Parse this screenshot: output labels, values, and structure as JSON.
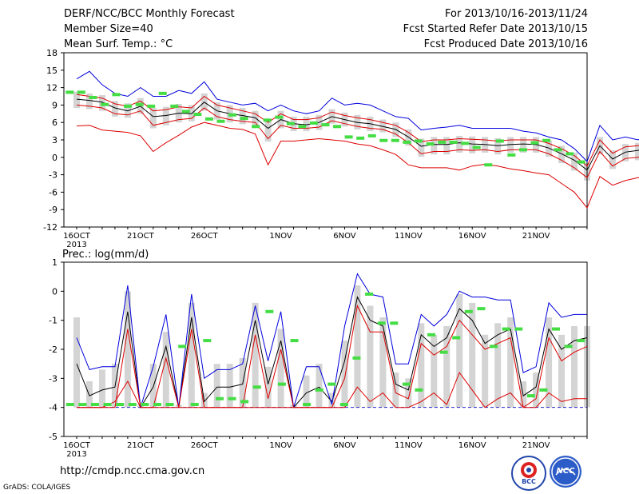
{
  "header": {
    "title": "DERF/NCC/BCC Monthly Forecast",
    "members": "Member Size=40",
    "variable": "Mean Surf. Temp.: °C",
    "period": "For 2013/10/16-2013/11/24",
    "started": "Fcst Started Refer Date 2013/10/15",
    "produced": "Fcst Produced Date 2013/10/16"
  },
  "footer": {
    "url": "http://cmdp.ncc.cma.gov.cn",
    "grads": "GrADS: COLA/IGES",
    "logo_left_text": "BCC",
    "logo_right_text": "NCC"
  },
  "colors": {
    "ensemble_box": "#d4d4d4",
    "mean": "#000000",
    "upper": "#0000dd",
    "lower": "#dd0000",
    "median": "#44dd44",
    "frame": "#000000"
  },
  "chart_data": [
    {
      "type": "line",
      "title": "Mean Surf. Temp.: °C",
      "xlabels": [
        "16OCT\n2013",
        "21OCT",
        "26OCT",
        "1NOV",
        "6NOV",
        "11NOV",
        "16NOV",
        "21NOV"
      ],
      "xlabel_days": [
        0,
        5,
        10,
        16,
        21,
        26,
        31,
        36
      ],
      "ylim": [
        -12,
        18
      ],
      "yticks": [
        -12,
        -9,
        -6,
        -3,
        0,
        3,
        6,
        9,
        12,
        15,
        18
      ],
      "days": 40,
      "series": [
        {
          "role": "mean",
          "values": [
            10,
            9.8,
            9.5,
            8.5,
            8,
            8.8,
            7,
            7.2,
            7.6,
            7.5,
            9.5,
            8,
            7.5,
            7.2,
            6.8,
            5,
            6.5,
            5.8,
            5.6,
            6,
            7,
            6.5,
            6,
            5.8,
            5.3,
            4.8,
            3.5,
            1.9,
            2.2,
            2.2,
            2.5,
            2.3,
            2.2,
            2.0,
            2.2,
            2.3,
            2.2,
            1.6,
            0.6,
            -0.5,
            -2.2,
            2.0,
            -0.3,
            0.9,
            1.2,
            2.0,
            0.5,
            0.3,
            -0.5,
            -1.8
          ]
        },
        {
          "role": "upper",
          "values": [
            13.5,
            14.8,
            12.5,
            11,
            10.5,
            12,
            10.5,
            10.5,
            11.5,
            11,
            13,
            10,
            9.5,
            9,
            9.3,
            8,
            9,
            8,
            7.5,
            8,
            10.2,
            9,
            9.3,
            9,
            8,
            7,
            6.7,
            4.7,
            5,
            5.2,
            5.5,
            5,
            5,
            5,
            5,
            4.5,
            4.2,
            3.5,
            3,
            1.5,
            -0.7,
            5.5,
            3,
            3.5,
            3,
            4.5,
            3.2,
            2.8,
            2.5,
            1.5
          ]
        },
        {
          "role": "lower",
          "values": [
            5.4,
            5.5,
            4.7,
            4.5,
            4.3,
            3.7,
            1,
            2.5,
            3.8,
            5.2,
            6,
            5.5,
            5,
            4.8,
            4,
            -1.3,
            2.8,
            2.8,
            3,
            3.2,
            3,
            2.8,
            2.3,
            2,
            1.3,
            0.5,
            -1.3,
            -1.8,
            -1.8,
            -1.8,
            -2.2,
            -1.5,
            -1.2,
            -1.5,
            -2,
            -2.3,
            -2.7,
            -3,
            -4.5,
            -6,
            -8.7,
            -3.3,
            -4.8,
            -4,
            -3.5,
            -4,
            -1.8,
            -2.8,
            -3.8,
            -5.5
          ]
        },
        {
          "role": "lower_mean",
          "values": [
            9,
            8.8,
            8.5,
            7.5,
            7.3,
            8,
            5.5,
            6,
            6.5,
            6.7,
            8.5,
            7,
            6.5,
            6.2,
            6,
            3.2,
            5.5,
            5,
            5,
            5.2,
            6.3,
            5.8,
            5.3,
            5,
            4.8,
            4,
            2.5,
            0.6,
            1,
            1,
            1.3,
            1.2,
            1.3,
            1,
            1.3,
            1.3,
            1.3,
            0.6,
            -0.5,
            -1.8,
            -3.5,
            1,
            -1.5,
            -0.2,
            0,
            0.8,
            -0.7,
            -1,
            -1.8,
            -2.7
          ]
        },
        {
          "role": "upper_mean",
          "values": [
            10.8,
            10.5,
            10.2,
            9.2,
            8.8,
            9.7,
            8,
            8.2,
            8.7,
            8.5,
            10.5,
            9,
            8.5,
            8,
            7.5,
            6,
            7.5,
            6.5,
            6.5,
            6.8,
            7.8,
            7.2,
            6.8,
            6.5,
            6,
            5.5,
            4.3,
            2.7,
            3,
            3,
            3.2,
            3.1,
            3,
            2.8,
            3,
            3,
            3,
            2.4,
            1.5,
            0.3,
            -1.5,
            3,
            0.7,
            1.8,
            2,
            2.8,
            1.4,
            1.2,
            0.5,
            -1.2
          ]
        },
        {
          "role": "median",
          "values": [
            11.2,
            11.2,
            10.3,
            9.1,
            10.8,
            8.8,
            9.1,
            8.8,
            11,
            8.8,
            7.9,
            7.4,
            6.6,
            6.2,
            7.3,
            6.7,
            5.3,
            6.4,
            6.9,
            5.8,
            5.3,
            5.9,
            5.6,
            5.3,
            3.5,
            3.3,
            3.7,
            2.9,
            2.9,
            2.6,
            2.8,
            2.3,
            2.6,
            2.6,
            2.4,
            1.7,
            -1.3,
            2.8,
            0.4,
            1.3,
            2.5,
            2.9,
            1.3,
            0.6,
            -0.8
          ]
        }
      ]
    },
    {
      "type": "line",
      "title": "Prec.: log(mm/d)",
      "xlabels": [
        "16OCT\n2013",
        "21OCT",
        "26OCT",
        "1NOV",
        "6NOV",
        "11NOV",
        "16NOV",
        "21NOV"
      ],
      "xlabel_days": [
        0,
        5,
        10,
        16,
        21,
        26,
        31,
        36
      ],
      "ylim": [
        -5,
        1
      ],
      "yticks": [
        -5,
        -4,
        -3,
        -2,
        -1,
        0,
        1
      ],
      "days": 40,
      "series": [
        {
          "role": "mean",
          "values": [
            -2.5,
            -3.6,
            -3.4,
            -3.3,
            -0.7,
            -4,
            -3.3,
            -1.9,
            -4,
            -0.9,
            -3.8,
            -3.3,
            -3.3,
            -3.2,
            -1,
            -3.2,
            -1.7,
            -4,
            -3.5,
            -3.3,
            -3.8,
            -2.4,
            -0.2,
            -1.0,
            -1.2,
            -3.2,
            -3.4,
            -1.5,
            -1.9,
            -1.6,
            -0.6,
            -1.0,
            -1.8,
            -1.5,
            -1.3,
            -3.6,
            -3.3,
            -1.3,
            -2.0,
            -1.7,
            -1.6
          ]
        },
        {
          "role": "upper",
          "values": [
            -1.6,
            -2.7,
            -2.6,
            -2.6,
            0.2,
            -4,
            -2.6,
            -0.8,
            -4,
            -0.1,
            -3.0,
            -2.7,
            -2.7,
            -2.5,
            -0.5,
            -2.4,
            -0.7,
            -4,
            -2.6,
            -2.6,
            -3.9,
            -1.2,
            0.6,
            -0.1,
            -0.2,
            -2.5,
            -2.5,
            -0.8,
            -1.2,
            -0.8,
            0,
            -0.2,
            -0.2,
            -0.3,
            -0.3,
            -2.8,
            -2.6,
            -0.4,
            -0.9,
            -0.8,
            -0.8
          ]
        },
        {
          "role": "lower",
          "values": [
            -4,
            -4,
            -4,
            -3.8,
            -3.1,
            -4,
            -4,
            -4,
            -4,
            -4,
            -4,
            -4,
            -4,
            -4,
            -4,
            -4,
            -4,
            -4,
            -4,
            -4,
            -4,
            -4,
            -3.3,
            -3.8,
            -3.5,
            -4,
            -4,
            -3.8,
            -3.5,
            -3.9,
            -2.8,
            -3.4,
            -4,
            -3.7,
            -3.5,
            -4,
            -4,
            -3.5,
            -3.8,
            -3.7,
            -3.7
          ]
        },
        {
          "role": "lower_mean",
          "values": [
            -4,
            -4,
            -4,
            -4,
            -1.3,
            -4,
            -4,
            -2.3,
            -4,
            -1.3,
            -4,
            -4,
            -4,
            -4,
            -1.5,
            -3.7,
            -2.0,
            -4,
            -4,
            -4,
            -4,
            -3,
            -0.5,
            -1.4,
            -1.4,
            -3.5,
            -3.7,
            -1.8,
            -2.2,
            -1.9,
            -1,
            -1.5,
            -2.0,
            -1.8,
            -1.6,
            -4,
            -3.7,
            -1.6,
            -2.4,
            -2.1,
            -1.9
          ]
        },
        {
          "role": "median",
          "values": [
            -3.9,
            -3.9,
            -3.9,
            -3.9,
            -3.9,
            -3.9,
            -3.9,
            -3.9,
            -3.9,
            -1.9,
            -3.9,
            -1.7,
            -3.7,
            -3.7,
            -3.8,
            -3.3,
            -0.7,
            -3.2,
            -1.7,
            -3.9,
            -3.4,
            -3.2,
            -3.9,
            -2.3,
            -0.1,
            -1.1,
            -1.1,
            -3.2,
            -3.4,
            -1.5,
            -2.1,
            -1.6,
            -0.7,
            -0.6,
            -1.9,
            -1.3,
            -1.3,
            -3.6,
            -3.4,
            -1.3,
            -1.9,
            -1.7
          ]
        }
      ]
    }
  ]
}
